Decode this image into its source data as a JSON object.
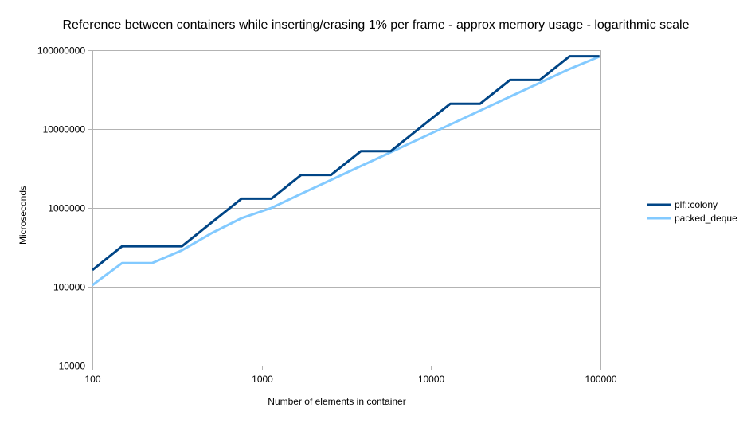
{
  "chart_data": {
    "type": "line",
    "title": "Reference between containers while inserting/erasing 1% per frame - approx memory usage - logarithmic scale",
    "xlabel": "Number of elements in container",
    "ylabel": "Microseconds",
    "x_scale": "log",
    "y_scale": "log",
    "xlim": [
      100,
      100000
    ],
    "ylim": [
      10000,
      100000000
    ],
    "x_ticks": [
      100,
      1000,
      10000,
      100000
    ],
    "x_tick_labels": [
      "100",
      "1000",
      "10000",
      "100000"
    ],
    "y_ticks": [
      10000,
      100000,
      1000000,
      10000000,
      100000000
    ],
    "y_tick_labels": [
      "10000",
      "100000",
      "1000000",
      "10000000",
      "100000000"
    ],
    "grid": "horizontal",
    "legend_position": "right",
    "series": [
      {
        "name": "plf::colony",
        "color": "#004586",
        "x": [
          100,
          150,
          225,
          338,
          507,
          760,
          1140,
          1710,
          2565,
          3848,
          5772,
          8658,
          12987,
          19480,
          29220,
          43830,
          65745,
          98618
        ],
        "y": [
          163000,
          327000,
          327000,
          327000,
          655000,
          1310000,
          1310000,
          2620000,
          2620000,
          5240000,
          5240000,
          10490000,
          20970000,
          20970000,
          41940000,
          41940000,
          83890000,
          83890000
        ]
      },
      {
        "name": "packed_deque",
        "color": "#83caff",
        "x": [
          100,
          150,
          225,
          338,
          507,
          760,
          1140,
          1710,
          2565,
          3848,
          5772,
          8658,
          12987,
          19480,
          29220,
          43830,
          65745,
          98618
        ],
        "y": [
          105000,
          200000,
          200000,
          290000,
          480000,
          740000,
          1000000,
          1510000,
          2260000,
          3390000,
          5080000,
          7620000,
          11430000,
          17150000,
          25720000,
          38580000,
          57870000,
          83000000
        ]
      }
    ]
  }
}
